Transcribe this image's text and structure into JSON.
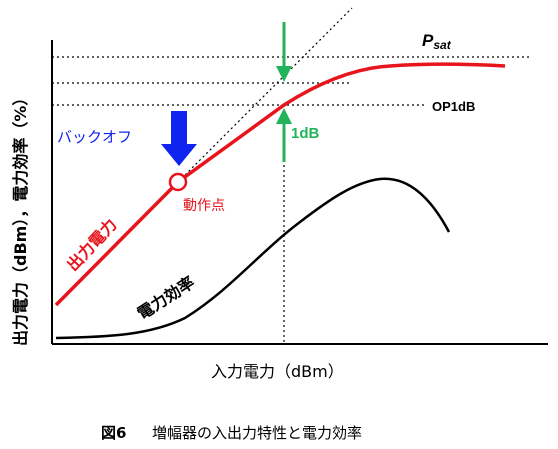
{
  "labels": {
    "y_axis": "出力電力（dBm），電力効率（%）",
    "x_axis": "入力電力（dBm）",
    "psat_main": "P",
    "psat_sub": "sat",
    "op1db": "OP1dB",
    "one_db": "1dB",
    "backoff": "バックオフ",
    "operating_point": "動作点",
    "output_power": "出力電力",
    "efficiency": "電力効率"
  },
  "caption": {
    "figure_number": "図6",
    "text": "増幅器の入出力特性と電力効率"
  },
  "colors": {
    "output_curve": "#e8141c",
    "efficiency_curve": "#000000",
    "backoff_arrow": "#1024f0",
    "backoff_text": "#1024f0",
    "one_db_arrow": "#22b45a",
    "one_db_text": "#22b45a",
    "operating_point_text": "#e8141c",
    "axes": "#000000"
  },
  "icons": {
    "backoff_arrow": "down-arrow-icon",
    "compression_arrows": "up-down-arrow-icon"
  }
}
